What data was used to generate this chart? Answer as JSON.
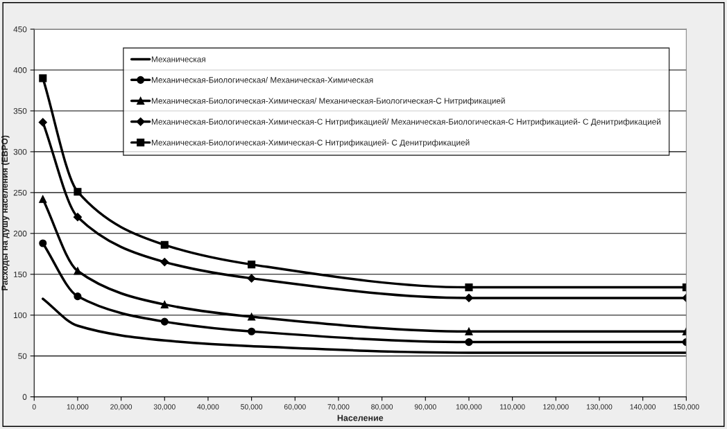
{
  "chart_data": {
    "type": "line",
    "xlabel": "Население",
    "ylabel": "Расходы на душу населения (ЕВРО)",
    "xlim": [
      0,
      150000
    ],
    "ylim": [
      0,
      450
    ],
    "xticks": [
      0,
      {
        "value": 10000,
        "label": "10,000"
      },
      {
        "value": 20000,
        "label": "20,000"
      },
      {
        "value": 30000,
        "label": "30,000"
      },
      {
        "value": 40000,
        "label": "40,000"
      },
      {
        "value": 50000,
        "label": "50,000"
      },
      {
        "value": 60000,
        "label": "60,000"
      },
      {
        "value": 70000,
        "label": "70,000"
      },
      {
        "value": 80000,
        "label": "80,000"
      },
      {
        "value": 90000,
        "label": "90,000"
      },
      {
        "value": 100000,
        "label": "100,000"
      },
      {
        "value": 110000,
        "label": "110,000"
      },
      {
        "value": 120000,
        "label": "120,000"
      },
      {
        "value": 130000,
        "label": "130,000"
      },
      {
        "value": 140000,
        "label": "140,000"
      },
      {
        "value": 150000,
        "label": "150,000"
      }
    ],
    "yticks": [
      0,
      50,
      100,
      150,
      200,
      250,
      300,
      350,
      400,
      450
    ],
    "grid": "y",
    "legend": "top right",
    "line_style": "solid",
    "x": [
      2000,
      10000,
      30000,
      50000,
      100000,
      150000
    ],
    "series": [
      {
        "name": "Механическая",
        "color": "#000000",
        "marker": "none",
        "values": [
          120,
          87,
          69,
          62,
          54,
          54
        ]
      },
      {
        "name": "Механическая-Биологическая/ Механическая-Химическая",
        "color": "#000000",
        "marker": "circle",
        "values": [
          188,
          123,
          92,
          80,
          67,
          67
        ]
      },
      {
        "name": "Механическая-Биологическая-Химическая/ Механическая-Биологическая-С Нитрификацией",
        "color": "#000000",
        "marker": "triangle",
        "values": [
          242,
          154,
          113,
          98,
          80,
          80
        ]
      },
      {
        "name": "Механическая-Биологическая-Химическая-С Нитрификацией/ Механическая-Биологическая-С Нитрификацией- С Денитрификацией",
        "color": "#000000",
        "marker": "diamond",
        "values": [
          336,
          220,
          165,
          145,
          121,
          121
        ]
      },
      {
        "name": "Механическая-Биологическая-Химическая-С Нитрификацией- С Денитрификацией",
        "color": "#000000",
        "marker": "square",
        "values": [
          390,
          251,
          186,
          162,
          134,
          134
        ]
      }
    ]
  }
}
